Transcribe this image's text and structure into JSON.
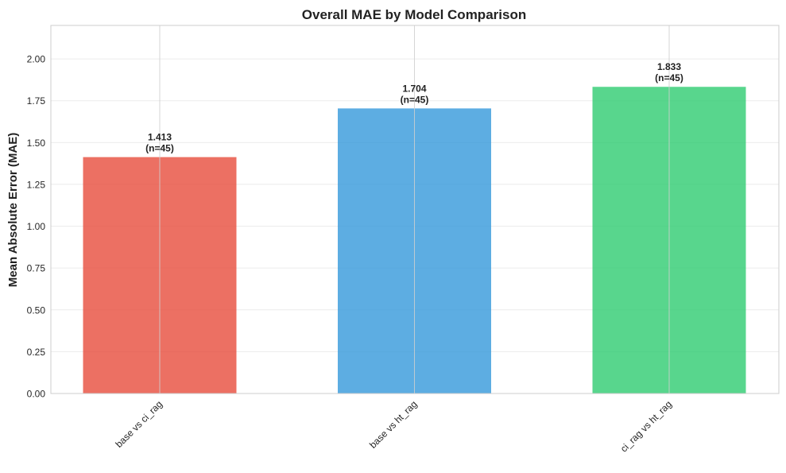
{
  "chart_data": {
    "type": "bar",
    "title": "Overall MAE by Model Comparison",
    "xlabel": "",
    "ylabel": "Mean Absolute Error (MAE)",
    "categories": [
      "base vs ci_rag",
      "base vs ht_rag",
      "ci_rag vs ht_rag"
    ],
    "values": [
      1.413,
      1.704,
      1.833
    ],
    "value_labels": [
      "1.413",
      "1.704",
      "1.833"
    ],
    "count_labels": [
      "(n=45)",
      "(n=45)",
      "(n=45)"
    ],
    "colors": [
      "#e74c3c",
      "#3498db",
      "#2ecc71"
    ],
    "ylim": [
      0,
      2.2
    ],
    "yticks": [
      0.0,
      0.25,
      0.5,
      0.75,
      1.0,
      1.25,
      1.5,
      1.75,
      2.0
    ],
    "ytick_labels": [
      "0.00",
      "0.25",
      "0.50",
      "0.75",
      "1.00",
      "1.25",
      "1.50",
      "1.75",
      "2.00"
    ],
    "grid": true,
    "legend": "none"
  }
}
